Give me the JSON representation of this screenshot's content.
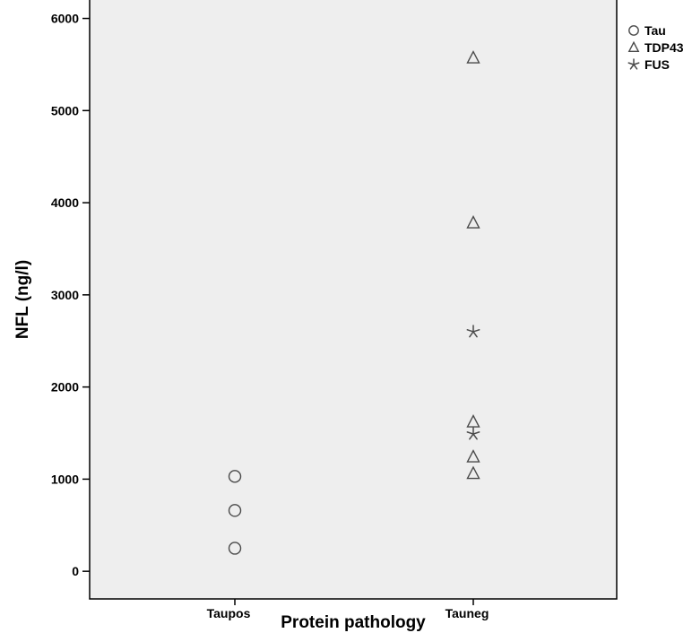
{
  "chart_data": {
    "type": "scatter",
    "xlabel": "Protein pathology",
    "ylabel": "NFL (ng/l)",
    "categories": [
      "Taupos",
      "Tauneg"
    ],
    "ylim": [
      -300,
      6200
    ],
    "yticks": [
      0,
      1000,
      2000,
      3000,
      4000,
      5000,
      6000
    ],
    "grid": false,
    "legend_position": "top-right",
    "series": [
      {
        "name": "Tau",
        "marker": "circle-icon",
        "points": [
          {
            "x": "Taupos",
            "y": 1030
          },
          {
            "x": "Taupos",
            "y": 660
          },
          {
            "x": "Taupos",
            "y": 250
          }
        ]
      },
      {
        "name": "TDP43",
        "marker": "triangle-icon",
        "points": [
          {
            "x": "Tauneg",
            "y": 5570
          },
          {
            "x": "Tauneg",
            "y": 3780
          },
          {
            "x": "Tauneg",
            "y": 1620
          },
          {
            "x": "Tauneg",
            "y": 1240
          },
          {
            "x": "Tauneg",
            "y": 1060
          }
        ]
      },
      {
        "name": "FUS",
        "marker": "star-icon",
        "points": [
          {
            "x": "Tauneg",
            "y": 2600
          },
          {
            "x": "Tauneg",
            "y": 1490
          }
        ]
      }
    ],
    "colors": {
      "plot_background": "#eeeeee",
      "marker_stroke": "#4a4a4a",
      "axis": "#000000"
    }
  }
}
